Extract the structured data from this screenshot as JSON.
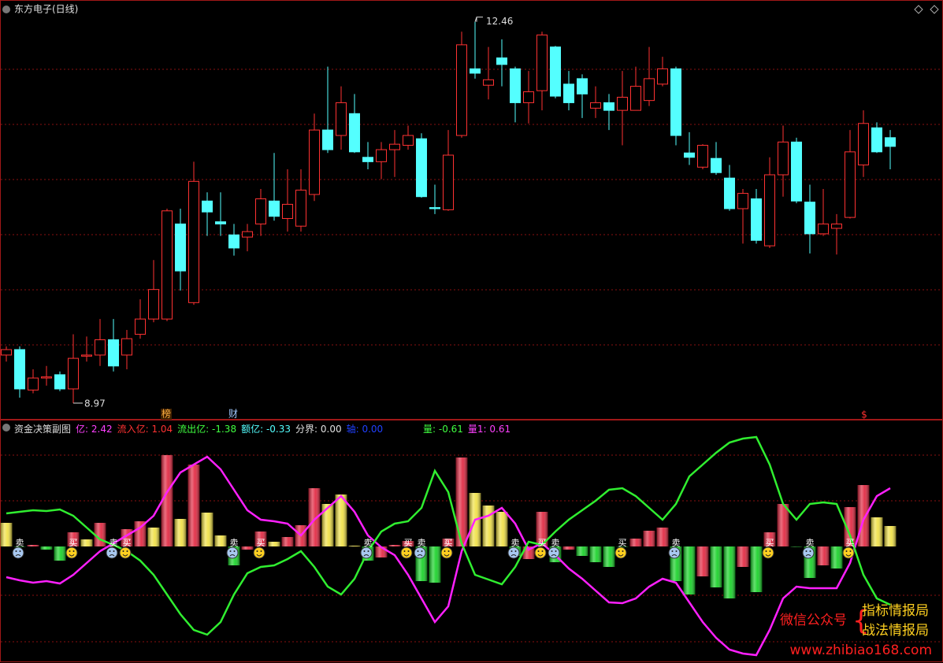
{
  "chart_data": [
    {
      "type": "candlestick",
      "title": "东方电子(日线)",
      "up_color": "#ff3232",
      "down_color": "#54ffff",
      "ylim": [
        8.84,
        12.66
      ],
      "open": [
        9.41,
        9.46,
        9.09,
        9.2,
        9.23,
        9.1,
        9.4,
        9.41,
        9.55,
        9.41,
        9.6,
        9.74,
        9.74,
        10.61,
        9.89,
        10.82,
        10.63,
        10.51,
        10.49,
        10.61,
        10.82,
        10.66,
        10.59,
        10.88,
        11.47,
        11.42,
        11.62,
        11.22,
        11.18,
        11.29,
        11.33,
        11.39,
        10.76,
        10.74,
        11.42,
        12.03,
        11.88,
        12.13,
        12.03,
        11.72,
        11.83,
        12.23,
        11.89,
        11.94,
        11.67,
        11.72,
        11.65,
        11.65,
        11.74,
        11.89,
        12.03,
        11.26,
        11.13,
        11.21,
        11.03,
        10.75,
        10.84,
        10.41,
        11.06,
        11.36,
        10.81,
        10.52,
        10.57,
        10.67,
        11.15,
        11.49,
        11.4
      ],
      "close": [
        9.46,
        9.1,
        9.2,
        9.21,
        9.1,
        9.38,
        9.41,
        9.55,
        9.31,
        9.56,
        9.74,
        10.01,
        10.73,
        10.18,
        11.0,
        10.72,
        10.61,
        10.39,
        10.54,
        10.84,
        10.68,
        10.79,
        10.92,
        11.47,
        11.29,
        11.72,
        11.27,
        11.18,
        11.29,
        11.34,
        11.42,
        10.86,
        10.75,
        11.24,
        12.25,
        11.99,
        11.93,
        12.07,
        11.72,
        11.82,
        12.34,
        11.78,
        11.72,
        11.8,
        11.72,
        11.65,
        11.77,
        11.87,
        11.94,
        12.03,
        11.42,
        11.22,
        11.33,
        11.08,
        10.75,
        10.89,
        10.46,
        11.06,
        11.36,
        10.82,
        10.52,
        10.61,
        10.61,
        11.27,
        11.53,
        11.27,
        11.32
      ],
      "high": [
        9.49,
        9.49,
        9.28,
        9.31,
        9.26,
        9.6,
        9.58,
        9.74,
        9.74,
        9.64,
        9.92,
        10.28,
        10.75,
        10.75,
        11.18,
        10.9,
        10.9,
        10.61,
        10.61,
        10.93,
        11.26,
        11.11,
        11.11,
        11.62,
        12.05,
        11.87,
        11.8,
        11.36,
        11.36,
        11.47,
        11.51,
        11.44,
        10.97,
        11.47,
        12.37,
        12.46,
        12.23,
        12.3,
        12.05,
        12.01,
        12.37,
        12.24,
        12.01,
        11.98,
        11.87,
        11.8,
        12.01,
        12.05,
        12.23,
        12.14,
        12.05,
        11.45,
        11.34,
        11.36,
        11.15,
        10.93,
        10.93,
        11.22,
        11.51,
        11.4,
        10.97,
        10.93,
        10.7,
        11.47,
        11.65,
        11.54,
        11.47
      ],
      "low": [
        9.35,
        9.02,
        9.06,
        9.13,
        9.08,
        8.97,
        9.35,
        9.31,
        9.26,
        9.28,
        9.56,
        9.71,
        9.72,
        10.0,
        9.87,
        10.5,
        10.5,
        10.32,
        10.36,
        10.5,
        10.64,
        10.54,
        10.54,
        10.82,
        11.26,
        11.29,
        11.26,
        11.11,
        11.02,
        11.04,
        11.29,
        10.85,
        10.7,
        10.73,
        11.4,
        11.94,
        11.75,
        11.87,
        11.54,
        11.53,
        11.65,
        11.76,
        11.65,
        11.58,
        11.58,
        11.47,
        11.33,
        11.65,
        11.69,
        11.87,
        11.33,
        11.15,
        11.11,
        11.06,
        10.73,
        10.43,
        10.43,
        10.39,
        10.86,
        10.8,
        10.34,
        10.5,
        10.33,
        10.66,
        11.04,
        11.26,
        11.11
      ],
      "high_marker": 12.46,
      "low_marker": 8.97,
      "markers": [
        "榜",
        "财",
        "$"
      ]
    },
    {
      "type": "indicator",
      "title": "资金决策副图",
      "header": [
        {
          "text": "亿: 2.42",
          "color": "#ff40ff"
        },
        {
          "text": "流入亿: 1.04",
          "color": "#ff3232"
        },
        {
          "text": "流出亿: -1.38",
          "color": "#40ff40"
        },
        {
          "text": "额亿: -0.33",
          "color": "#54ffff"
        },
        {
          "text": "分界: 0.00",
          "color": "#e0e0e0"
        },
        {
          "text": "轴: 0.00",
          "color": "#2040ff"
        }
      ],
      "header2": [
        {
          "text": "量: -0.61",
          "color": "#40ff40"
        },
        {
          "text": "量1: 0.61",
          "color": "#ff40ff"
        }
      ],
      "ylim": [
        -2.96,
        2.92
      ],
      "bars": {
        "values": [
          0.6,
          0,
          0.04,
          -0.08,
          -0.36,
          0.36,
          0.18,
          0.6,
          0.02,
          0.44,
          0.64,
          0.48,
          2.32,
          0.7,
          2.08,
          0.86,
          0.28,
          -0.48,
          -0.08,
          0.38,
          0.12,
          0.24,
          0.54,
          1.48,
          1.08,
          1.32,
          0.02,
          -0.36,
          -0.28,
          0.04,
          0.14,
          -0.88,
          -0.92,
          0.2,
          2.26,
          1.36,
          1.04,
          0.88,
          -0.24,
          -0.32,
          0.88,
          -0.4,
          -0.08,
          -0.24,
          -0.4,
          -0.52,
          0,
          0.2,
          0.4,
          0.48,
          -0.88,
          -1.22,
          -0.76,
          -1.04,
          -1.32,
          -0.52,
          -1.16,
          0.36,
          1.08,
          0,
          -0.8,
          -0.48,
          -0.56,
          1.0,
          1.56,
          0.74,
          0.52
        ],
        "colors": [
          "#f0e040",
          "#10d020",
          "#e0203a",
          "#10d020",
          "#10d020",
          "#e0203a",
          "#f0e040",
          "#e0203a",
          "#e0203a",
          "#e0203a",
          "#e0203a",
          "#f0e040",
          "#e0203a",
          "#f0e040",
          "#e0203a",
          "#f0e040",
          "#f0e040",
          "#10d020",
          "#e0203a",
          "#e0203a",
          "#f0e040",
          "#e0203a",
          "#e0203a",
          "#e0203a",
          "#f0e040",
          "#f0e040",
          "#f0e040",
          "#10d020",
          "#e0203a",
          "#e0203a",
          "#e0203a",
          "#10d020",
          "#10d020",
          "#e0203a",
          "#e0203a",
          "#f0e040",
          "#f0e040",
          "#f0e040",
          "#10d020",
          "#e0203a",
          "#e0203a",
          "#10d020",
          "#e0203a",
          "#10d020",
          "#10d020",
          "#10d020",
          "#10d020",
          "#e0203a",
          "#e0203a",
          "#e0203a",
          "#10d020",
          "#10d020",
          "#e0203a",
          "#10d020",
          "#10d020",
          "#e0203a",
          "#10d020",
          "#e0203a",
          "#e0203a",
          "#10d020",
          "#10d020",
          "#e0203a",
          "#10d020",
          "#e0203a",
          "#e0203a",
          "#f0e040",
          "#f0e040"
        ]
      },
      "series": [
        {
          "color": "#ff20ff",
          "values": [
            -0.78,
            -0.86,
            -0.92,
            -0.88,
            -0.94,
            -0.72,
            -0.42,
            -0.12,
            0.08,
            0.28,
            0.48,
            0.78,
            1.38,
            1.88,
            2.08,
            2.28,
            1.96,
            1.44,
            0.92,
            0.68,
            0.64,
            0.58,
            0.28,
            0.68,
            0.98,
            1.28,
            0.88,
            0.28,
            -0.02,
            -0.22,
            -0.72,
            -1.32,
            -1.92,
            -1.52,
            -0.12,
            0.68,
            0.78,
            0.98,
            0.58,
            -0.08,
            0.08,
            -0.22,
            -0.56,
            -0.82,
            -1.12,
            -1.42,
            -1.44,
            -1.32,
            -1.02,
            -0.82,
            -0.92,
            -1.42,
            -1.92,
            -2.32,
            -2.62,
            -2.72,
            -2.76,
            -2.12,
            -1.32,
            -1.02,
            -1.06,
            -1.06,
            -1.06,
            -0.42,
            0.68,
            1.28,
            1.48
          ]
        },
        {
          "color": "#30ee30",
          "values": [
            0.84,
            0.88,
            0.92,
            0.9,
            0.94,
            0.78,
            0.48,
            0.18,
            0.04,
            -0.12,
            -0.36,
            -0.72,
            -1.22,
            -1.72,
            -2.12,
            -2.24,
            -1.92,
            -1.22,
            -0.68,
            -0.52,
            -0.48,
            -0.32,
            -0.12,
            -0.52,
            -1.02,
            -1.22,
            -0.82,
            -0.12,
            0.38,
            0.58,
            0.64,
            0.98,
            1.92,
            1.38,
            0.08,
            -0.72,
            -0.84,
            -0.96,
            -0.52,
            0.12,
            0.04,
            0.38,
            0.68,
            0.92,
            1.16,
            1.44,
            1.48,
            1.28,
            0.98,
            0.68,
            1.08,
            1.78,
            2.08,
            2.38,
            2.64,
            2.74,
            2.78,
            2.08,
            1.08,
            0.68,
            1.08,
            1.12,
            1.08,
            0.28,
            -0.72,
            -1.32,
            -1.48
          ]
        }
      ],
      "signals": [
        {
          "index": 1,
          "label": "卖"
        },
        {
          "index": 5,
          "label": "买"
        },
        {
          "index": 8,
          "label": "卖"
        },
        {
          "index": 9,
          "label": "买"
        },
        {
          "index": 17,
          "label": "卖"
        },
        {
          "index": 19,
          "label": "买"
        },
        {
          "index": 27,
          "label": "卖"
        },
        {
          "index": 30,
          "label": "买"
        },
        {
          "index": 31,
          "label": "卖"
        },
        {
          "index": 33,
          "label": "买"
        },
        {
          "index": 38,
          "label": "卖"
        },
        {
          "index": 40,
          "label": "买"
        },
        {
          "index": 41,
          "label": "卖"
        },
        {
          "index": 46,
          "label": "买"
        },
        {
          "index": 50,
          "label": "卖"
        },
        {
          "index": 57,
          "label": "买"
        },
        {
          "index": 60,
          "label": "卖"
        },
        {
          "index": 63,
          "label": "买"
        }
      ]
    }
  ],
  "watermark": {
    "account": "微信公众号",
    "name1": "指标情报局",
    "name2": "战法情报局",
    "url": "www.zhibiao168.com"
  }
}
